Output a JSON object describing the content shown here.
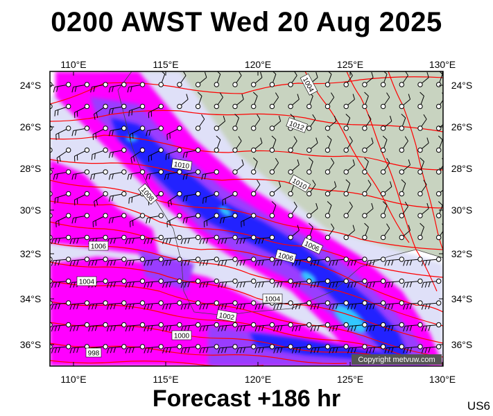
{
  "header": {
    "title": "0200 AWST Wed 20 Aug 2025"
  },
  "footer": {
    "forecast": "Forecast +186 hr",
    "code": "US6"
  },
  "map": {
    "lon_labels": [
      "110°E",
      "115°E",
      "120°E",
      "125°E",
      "130°E"
    ],
    "lat_labels": [
      "24°S",
      "26°S",
      "28°S",
      "30°S",
      "32°S",
      "34°S",
      "36°S"
    ],
    "isobar_labels": [
      "1004",
      "1012",
      "1010",
      "1010",
      "1008",
      "1006",
      "1006",
      "1006",
      "1004",
      "1004",
      "1002",
      "1000",
      "998"
    ],
    "copyright": "Copyright metvuw.com",
    "colors": {
      "land": "#c8d3c0",
      "sea": "#ffffff",
      "rain_light": "#dfe0f8",
      "rain_magenta": "#ff00ff",
      "rain_purple": "#9a3cff",
      "rain_blue": "#2020ff",
      "rain_cyan": "#30c8ff",
      "isobar": "#ff0000"
    }
  }
}
